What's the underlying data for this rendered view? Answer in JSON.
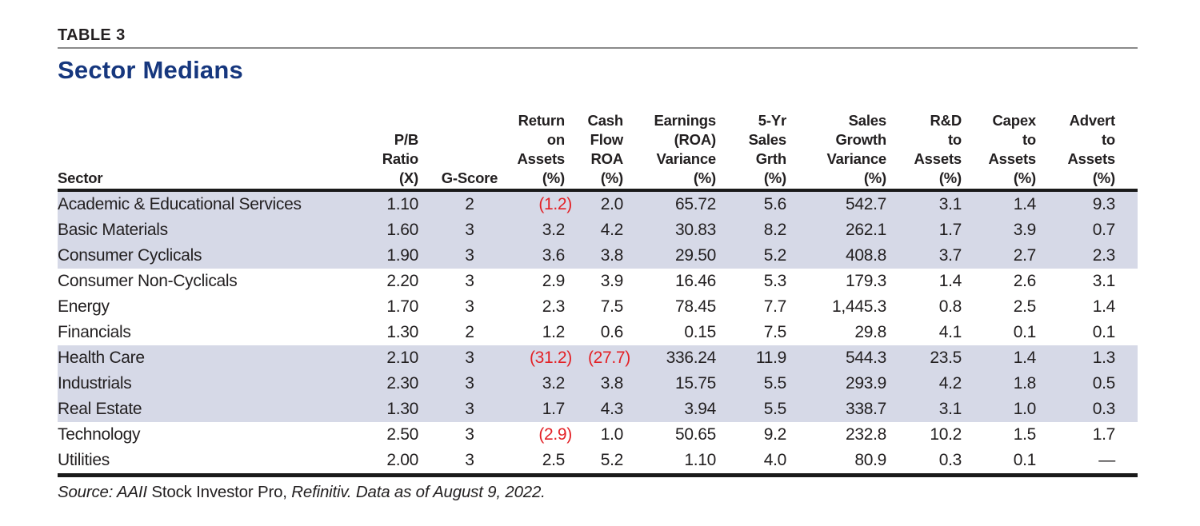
{
  "page": {
    "table_label": "TABLE 3",
    "title": "Sector Medians"
  },
  "colors": {
    "title_navy": "#16377e",
    "negative_red": "#e32126",
    "row_band_lavender": "#d6d9e7",
    "rule_black": "#1a1a1a"
  },
  "table": {
    "columns": [
      {
        "id": "sector",
        "label": "Sector",
        "header_lines": [
          "Sector"
        ]
      },
      {
        "id": "pb_ratio",
        "label": "P/B Ratio (X)",
        "header_lines": [
          "P/B",
          "Ratio",
          "(X)"
        ]
      },
      {
        "id": "g_score",
        "label": "G-Score",
        "header_lines": [
          "G-Score"
        ]
      },
      {
        "id": "roa",
        "label": "Return on Assets (%)",
        "header_lines": [
          "Return",
          "on",
          "Assets",
          "(%)"
        ]
      },
      {
        "id": "cf_roa",
        "label": "Cash Flow ROA (%)",
        "header_lines": [
          "Cash",
          "Flow",
          "ROA",
          "(%)"
        ]
      },
      {
        "id": "earn_var",
        "label": "Earnings (ROA) Variance (%)",
        "header_lines": [
          "Earnings",
          "(ROA)",
          "Variance",
          "(%)"
        ]
      },
      {
        "id": "sales_5yr",
        "label": "5-Yr Sales Grth (%)",
        "header_lines": [
          "5-Yr",
          "Sales",
          "Grth",
          "(%)"
        ]
      },
      {
        "id": "sales_var",
        "label": "Sales Growth Variance (%)",
        "header_lines": [
          "Sales",
          "Growth",
          "Variance",
          "(%)"
        ]
      },
      {
        "id": "rd_assets",
        "label": "R&D to Assets (%)",
        "header_lines": [
          "R&D",
          "to",
          "Assets",
          "(%)"
        ]
      },
      {
        "id": "capex",
        "label": "Capex to Assets (%)",
        "header_lines": [
          "Capex",
          "to",
          "Assets",
          "(%)"
        ]
      },
      {
        "id": "advert",
        "label": "Advert to Assets (%)",
        "header_lines": [
          "Advert",
          "to",
          "Assets",
          "(%)"
        ]
      }
    ],
    "rows": [
      {
        "shaded": true,
        "cells": [
          "Academic & Educational Services",
          "1.10",
          "2",
          "(1.2)",
          "2.0",
          "65.72",
          "5.6",
          "542.7",
          "3.1",
          "1.4",
          "9.3"
        ]
      },
      {
        "shaded": true,
        "cells": [
          "Basic Materials",
          "1.60",
          "3",
          "3.2",
          "4.2",
          "30.83",
          "8.2",
          "262.1",
          "1.7",
          "3.9",
          "0.7"
        ]
      },
      {
        "shaded": true,
        "cells": [
          "Consumer Cyclicals",
          "1.90",
          "3",
          "3.6",
          "3.8",
          "29.50",
          "5.2",
          "408.8",
          "3.7",
          "2.7",
          "2.3"
        ]
      },
      {
        "shaded": false,
        "cells": [
          "Consumer Non-Cyclicals",
          "2.20",
          "3",
          "2.9",
          "3.9",
          "16.46",
          "5.3",
          "179.3",
          "1.4",
          "2.6",
          "3.1"
        ]
      },
      {
        "shaded": false,
        "cells": [
          "Energy",
          "1.70",
          "3",
          "2.3",
          "7.5",
          "78.45",
          "7.7",
          "1,445.3",
          "0.8",
          "2.5",
          "1.4"
        ]
      },
      {
        "shaded": false,
        "cells": [
          "Financials",
          "1.30",
          "2",
          "1.2",
          "0.6",
          "0.15",
          "7.5",
          "29.8",
          "4.1",
          "0.1",
          "0.1"
        ]
      },
      {
        "shaded": true,
        "cells": [
          "Health Care",
          "2.10",
          "3",
          "(31.2)",
          "(27.7)",
          "336.24",
          "11.9",
          "544.3",
          "23.5",
          "1.4",
          "1.3"
        ]
      },
      {
        "shaded": true,
        "cells": [
          "Industrials",
          "2.30",
          "3",
          "3.2",
          "3.8",
          "15.75",
          "5.5",
          "293.9",
          "4.2",
          "1.8",
          "0.5"
        ]
      },
      {
        "shaded": true,
        "cells": [
          "Real Estate",
          "1.30",
          "3",
          "1.7",
          "4.3",
          "3.94",
          "5.5",
          "338.7",
          "3.1",
          "1.0",
          "0.3"
        ]
      },
      {
        "shaded": false,
        "cells": [
          "Technology",
          "2.50",
          "3",
          "(2.9)",
          "1.0",
          "50.65",
          "9.2",
          "232.8",
          "10.2",
          "1.5",
          "1.7"
        ]
      },
      {
        "shaded": false,
        "cells": [
          "Utilities",
          "2.00",
          "3",
          "2.5",
          "5.2",
          "1.10",
          "4.0",
          "80.9",
          "0.3",
          "0.1",
          "—"
        ]
      }
    ]
  },
  "source": {
    "segments": [
      {
        "text": "Source: AAII ",
        "style": "italic"
      },
      {
        "text": "Stock Investor Pro, ",
        "style": "normal"
      },
      {
        "text": "Refinitiv. ",
        "style": "italic"
      },
      {
        "text": "Data as of August 9, 2022.",
        "style": "italic"
      }
    ]
  }
}
